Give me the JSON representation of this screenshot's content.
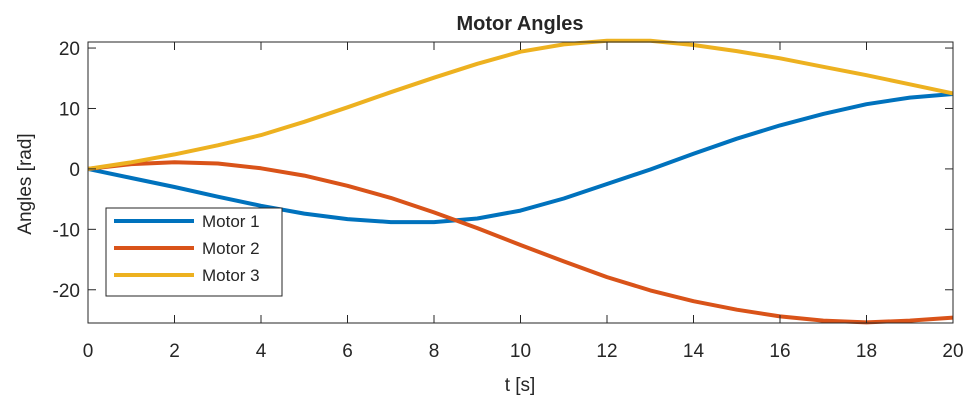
{
  "chart_data": {
    "type": "line",
    "title": "Motor Angles",
    "xlabel": "t [s]",
    "ylabel": "Angles [rad]",
    "xlim": [
      0,
      20
    ],
    "ylim": [
      -25.5,
      21
    ],
    "xticks": [
      0,
      2,
      4,
      6,
      8,
      10,
      12,
      14,
      16,
      18,
      20
    ],
    "yticks": [
      -20,
      -10,
      0,
      10,
      20
    ],
    "grid": false,
    "legend": "bottom-left",
    "x": [
      0,
      1,
      2,
      3,
      4,
      5,
      6,
      7,
      8,
      9,
      10,
      11,
      12,
      13,
      14,
      15,
      16,
      17,
      18,
      19,
      20
    ],
    "series": [
      {
        "name": "Motor 1",
        "color": "#0072BD",
        "values": [
          0,
          -1.5,
          -3,
          -4.6,
          -6.1,
          -7.4,
          -8.3,
          -8.8,
          -8.8,
          -8.2,
          -6.9,
          -4.9,
          -2.5,
          -0.1,
          2.5,
          5,
          7.2,
          9.1,
          10.7,
          11.8,
          12.4
        ]
      },
      {
        "name": "Motor 2",
        "color": "#D95319",
        "values": [
          0,
          0.8,
          1.1,
          0.9,
          0.1,
          -1.1,
          -2.8,
          -4.8,
          -7.2,
          -9.8,
          -12.6,
          -15.3,
          -17.9,
          -20.1,
          -21.9,
          -23.3,
          -24.4,
          -25.1,
          -25.4,
          -25.1,
          -24.6
        ]
      },
      {
        "name": "Motor 3",
        "color": "#EDB120",
        "values": [
          0,
          1.1,
          2.4,
          3.9,
          5.6,
          7.8,
          10.2,
          12.7,
          15.1,
          17.4,
          19.4,
          20.6,
          21.2,
          21.2,
          20.5,
          19.5,
          18.3,
          16.9,
          15.5,
          14,
          12.5
        ]
      }
    ]
  }
}
